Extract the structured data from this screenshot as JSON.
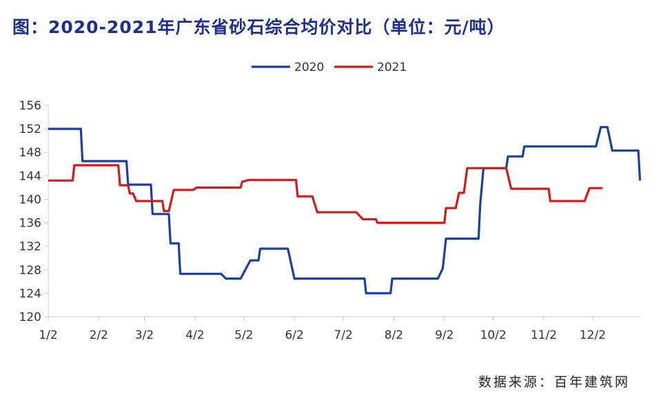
{
  "chart_data": {
    "type": "line",
    "title": "图：2020-2021年广东省砂石综合均价对比（单位：元/吨）",
    "xlabel": "",
    "ylabel": "",
    "ylim": [
      120,
      156
    ],
    "yticks": [
      120,
      124,
      128,
      132,
      136,
      140,
      144,
      148,
      152,
      156
    ],
    "xticks": [
      "1/2",
      "2/2",
      "3/2",
      "4/2",
      "5/2",
      "6/2",
      "7/2",
      "8/2",
      "9/2",
      "10/2",
      "11/2",
      "12/2"
    ],
    "grid": false,
    "legend_position": "top-center",
    "series": [
      {
        "name": "2020",
        "color": "#1a3ea3",
        "points": [
          [
            "1/2",
            152
          ],
          [
            "1/22",
            152
          ],
          [
            "1/23",
            146.5
          ],
          [
            "2/19",
            146.5
          ],
          [
            "2/20",
            142.5
          ],
          [
            "3/6",
            142.5
          ],
          [
            "3/7",
            137.5
          ],
          [
            "3/17",
            137.5
          ],
          [
            "3/18",
            132.5
          ],
          [
            "3/23",
            132.5
          ],
          [
            "3/24",
            127.3
          ],
          [
            "4/18",
            127.3
          ],
          [
            "4/21",
            126.5
          ],
          [
            "4/30",
            126.5
          ],
          [
            "5/6",
            129.6
          ],
          [
            "5/11",
            129.6
          ],
          [
            "5/12",
            131.6
          ],
          [
            "5/29",
            131.6
          ],
          [
            "6/2",
            126.5
          ],
          [
            "7/15",
            126.5
          ],
          [
            "7/16",
            124
          ],
          [
            "7/31",
            124
          ],
          [
            "8/1",
            126.5
          ],
          [
            "8/29",
            126.5
          ],
          [
            "9/1",
            128.2
          ],
          [
            "9/3",
            133.3
          ],
          [
            "9/23",
            133.3
          ],
          [
            "9/24",
            139.2
          ],
          [
            "9/26",
            145.3
          ],
          [
            "10/10",
            145.3
          ],
          [
            "10/11",
            147.3
          ],
          [
            "10/20",
            147.3
          ],
          [
            "10/21",
            149
          ],
          [
            "12/4",
            149
          ],
          [
            "12/7",
            152.3
          ],
          [
            "12/11",
            152.3
          ],
          [
            "12/14",
            148.3
          ],
          [
            "12/30",
            148.3
          ],
          [
            "12/31",
            143.2
          ]
        ]
      },
      {
        "name": "2021",
        "color": "#d11a1a",
        "points": [
          [
            "1/2",
            143.2
          ],
          [
            "1/17",
            143.2
          ],
          [
            "1/18",
            145.8
          ],
          [
            "2/14",
            145.8
          ],
          [
            "2/15",
            142.4
          ],
          [
            "2/20",
            142.4
          ],
          [
            "2/21",
            141
          ],
          [
            "2/23",
            141
          ],
          [
            "2/25",
            139.7
          ],
          [
            "3/13",
            139.7
          ],
          [
            "3/14",
            138
          ],
          [
            "3/17",
            138
          ],
          [
            "3/20",
            141.6
          ],
          [
            "4/1",
            141.6
          ],
          [
            "4/3",
            142
          ],
          [
            "4/30",
            142
          ],
          [
            "5/1",
            143
          ],
          [
            "5/5",
            143.3
          ],
          [
            "6/3",
            143.3
          ],
          [
            "6/4",
            140.5
          ],
          [
            "6/13",
            140.5
          ],
          [
            "6/16",
            137.8
          ],
          [
            "7/10",
            137.8
          ],
          [
            "7/14",
            136.6
          ],
          [
            "7/22",
            136.6
          ],
          [
            "7/23",
            136
          ],
          [
            "9/2",
            136
          ],
          [
            "9/3",
            138.5
          ],
          [
            "9/9",
            138.5
          ],
          [
            "9/11",
            141.1
          ],
          [
            "9/14",
            141.1
          ],
          [
            "9/16",
            145.3
          ],
          [
            "10/10",
            145.3
          ],
          [
            "10/13",
            141.8
          ],
          [
            "11/5",
            141.8
          ],
          [
            "11/6",
            139.7
          ],
          [
            "11/27",
            139.7
          ],
          [
            "11/30",
            141.9
          ],
          [
            "12/8",
            141.9
          ]
        ]
      }
    ],
    "source": "数据来源：百年建筑网"
  }
}
